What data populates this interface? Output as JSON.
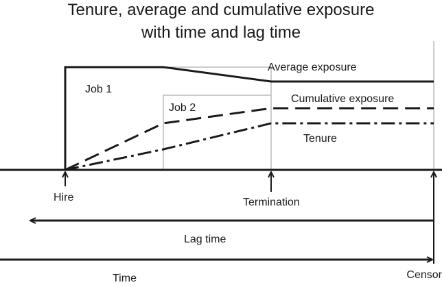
{
  "title": {
    "line1": "Tenure, average and cumulative exposure",
    "line2": "with time and lag time"
  },
  "boxes": {
    "job1": "Job 1",
    "job2": "Job 2"
  },
  "curves": {
    "average_exposure": "Average exposure",
    "cumulative_exposure": "Cumulative exposure",
    "tenure": "Tenure"
  },
  "events": {
    "hire": "Hire",
    "termination": "Termination",
    "censor": "Censor"
  },
  "axes": {
    "lag_time": "Lag time",
    "time": "Time"
  },
  "colors": {
    "ink": "#1a1a1a",
    "box_outline": "#9a9a9a"
  }
}
